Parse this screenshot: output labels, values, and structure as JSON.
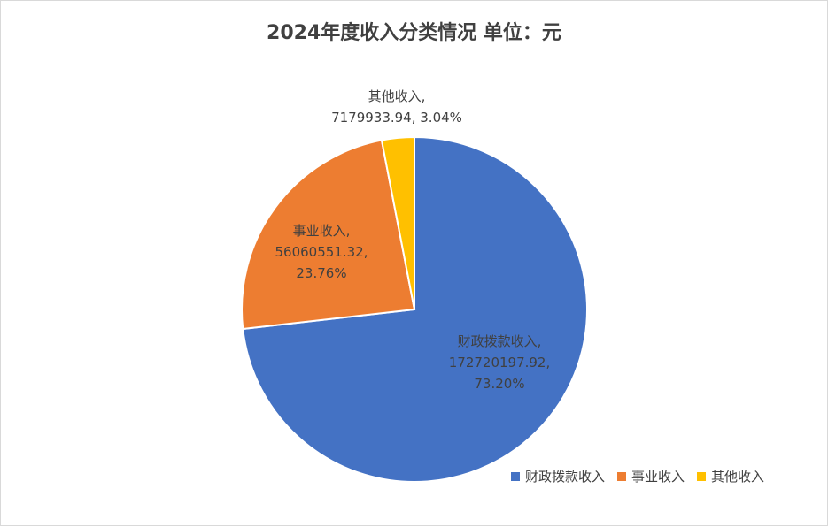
{
  "chart_data": {
    "type": "pie",
    "title": "2024年度收入分类情况  单位：元",
    "categories": [
      "财政拨款收入",
      "事业收入",
      "其他收入"
    ],
    "values": [
      172720197.92,
      56060551.32,
      7179933.94
    ],
    "percent_labels": [
      "73.20%",
      "23.76%",
      "3.04%"
    ],
    "value_labels": [
      "172720197.92",
      "56060551.32",
      "7179933.94"
    ],
    "colors": [
      "#4472C4",
      "#ED7D31",
      "#FFC000"
    ],
    "legend_position": "bottom-right"
  }
}
